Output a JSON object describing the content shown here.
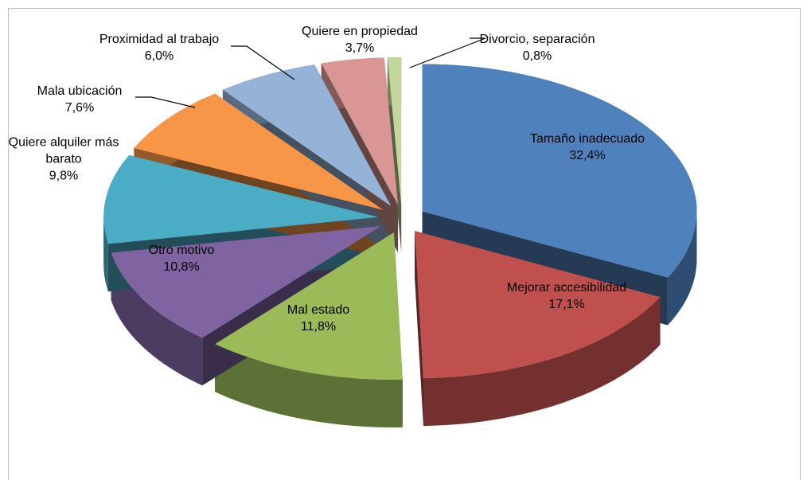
{
  "chart_data": {
    "type": "pie",
    "categories": [
      "Tamaño inadecuado",
      "Mejorar accesibilidad",
      "Mal estado",
      "Otro motivo",
      "Quiere alquiler más barato",
      "Mala ubicación",
      "Proximidad al trabajo",
      "Quiere en propiedad",
      "Divorcio, separación"
    ],
    "values": [
      32.4,
      17.1,
      11.8,
      10.8,
      9.8,
      7.6,
      6.0,
      3.7,
      0.8
    ],
    "value_labels": [
      "32,4%",
      "17,1%",
      "11,8%",
      "10,8%",
      "9,8%",
      "7,6%",
      "6,0%",
      "3,7%",
      "0,8%"
    ],
    "colors": [
      "#4f81bd",
      "#c0504d",
      "#9bbb59",
      "#8064a2",
      "#4bacc6",
      "#f79646",
      "#95b3d7",
      "#d99694",
      "#c3d69b"
    ]
  }
}
